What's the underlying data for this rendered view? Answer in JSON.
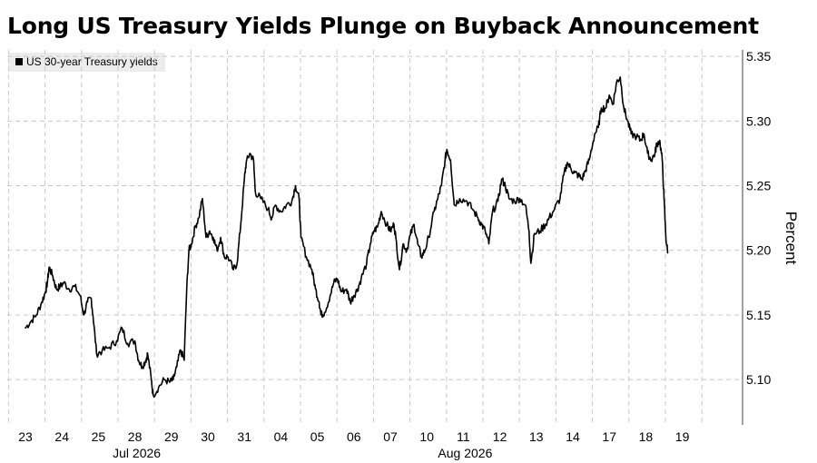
{
  "chart_data": {
    "type": "line",
    "title": "Long US Treasury Yields Plunge on Buyback Announcement",
    "legend": {
      "entries": [
        "US 30-year Treasury yields"
      ],
      "placement": "top-left"
    },
    "ylabel": "Percent",
    "ylim": [
      5.065,
      5.355
    ],
    "y_ticks": [
      "5.10",
      "5.15",
      "5.20",
      "5.25",
      "5.30",
      "5.35"
    ],
    "y_tick_values": [
      5.1,
      5.15,
      5.2,
      5.25,
      5.3,
      5.35
    ],
    "x_ticks": [
      "23",
      "24",
      "25",
      "28",
      "29",
      "30",
      "31",
      "04",
      "05",
      "06",
      "07",
      "10",
      "11",
      "12",
      "13",
      "14",
      "17",
      "18",
      "19"
    ],
    "x_month_labels": [
      {
        "label": "Jul 2026",
        "at_day": "28"
      },
      {
        "label": "Aug 2026",
        "at_day": "11"
      }
    ],
    "grid": "dashed-vertical-and-horizontal",
    "y_axis_position": "right",
    "series": [
      {
        "name": "US 30-year Treasury yields",
        "color": "#000000",
        "points": [
          [
            0.0,
            5.14
          ],
          [
            0.15,
            5.145
          ],
          [
            0.3,
            5.15
          ],
          [
            0.45,
            5.16
          ],
          [
            0.55,
            5.168
          ],
          [
            0.6,
            5.175
          ],
          [
            0.65,
            5.187
          ],
          [
            0.75,
            5.18
          ],
          [
            0.85,
            5.17
          ],
          [
            0.95,
            5.172
          ],
          [
            1.05,
            5.175
          ],
          [
            1.2,
            5.17
          ],
          [
            1.35,
            5.172
          ],
          [
            1.5,
            5.165
          ],
          [
            1.6,
            5.15
          ],
          [
            1.7,
            5.16
          ],
          [
            1.8,
            5.163
          ],
          [
            1.85,
            5.15
          ],
          [
            1.95,
            5.12
          ],
          [
            2.1,
            5.122
          ],
          [
            2.3,
            5.125
          ],
          [
            2.5,
            5.13
          ],
          [
            2.65,
            5.14
          ],
          [
            2.8,
            5.128
          ],
          [
            3.0,
            5.13
          ],
          [
            3.1,
            5.115
          ],
          [
            3.2,
            5.11
          ],
          [
            3.3,
            5.115
          ],
          [
            3.35,
            5.12
          ],
          [
            3.45,
            5.1
          ],
          [
            3.5,
            5.088
          ],
          [
            3.65,
            5.094
          ],
          [
            3.8,
            5.1
          ],
          [
            3.95,
            5.098
          ],
          [
            4.05,
            5.1
          ],
          [
            4.15,
            5.11
          ],
          [
            4.25,
            5.123
          ],
          [
            4.35,
            5.115
          ],
          [
            4.42,
            5.17
          ],
          [
            4.48,
            5.2
          ],
          [
            4.55,
            5.205
          ],
          [
            4.65,
            5.218
          ],
          [
            4.75,
            5.225
          ],
          [
            4.85,
            5.24
          ],
          [
            4.95,
            5.21
          ],
          [
            5.05,
            5.215
          ],
          [
            5.15,
            5.21
          ],
          [
            5.25,
            5.2
          ],
          [
            5.35,
            5.21
          ],
          [
            5.45,
            5.195
          ],
          [
            5.55,
            5.195
          ],
          [
            5.7,
            5.185
          ],
          [
            5.8,
            5.19
          ],
          [
            5.9,
            5.22
          ],
          [
            6.0,
            5.255
          ],
          [
            6.05,
            5.268
          ],
          [
            6.15,
            5.275
          ],
          [
            6.25,
            5.27
          ],
          [
            6.3,
            5.245
          ],
          [
            6.45,
            5.24
          ],
          [
            6.65,
            5.232
          ],
          [
            6.75,
            5.225
          ],
          [
            6.85,
            5.235
          ],
          [
            7.0,
            5.23
          ],
          [
            7.15,
            5.235
          ],
          [
            7.3,
            5.238
          ],
          [
            7.4,
            5.25
          ],
          [
            7.5,
            5.24
          ],
          [
            7.55,
            5.21
          ],
          [
            7.7,
            5.195
          ],
          [
            7.85,
            5.185
          ],
          [
            7.95,
            5.17
          ],
          [
            8.05,
            5.16
          ],
          [
            8.1,
            5.15
          ],
          [
            8.2,
            5.152
          ],
          [
            8.35,
            5.165
          ],
          [
            8.45,
            5.175
          ],
          [
            8.55,
            5.178
          ],
          [
            8.65,
            5.168
          ],
          [
            8.8,
            5.17
          ],
          [
            8.9,
            5.16
          ],
          [
            9.0,
            5.165
          ],
          [
            9.1,
            5.17
          ],
          [
            9.2,
            5.178
          ],
          [
            9.35,
            5.19
          ],
          [
            9.45,
            5.205
          ],
          [
            9.55,
            5.215
          ],
          [
            9.65,
            5.218
          ],
          [
            9.75,
            5.23
          ],
          [
            9.9,
            5.22
          ],
          [
            10.0,
            5.215
          ],
          [
            10.1,
            5.22
          ],
          [
            10.15,
            5.21
          ],
          [
            10.25,
            5.185
          ],
          [
            10.35,
            5.205
          ],
          [
            10.45,
            5.2
          ],
          [
            10.55,
            5.212
          ],
          [
            10.65,
            5.22
          ],
          [
            10.75,
            5.205
          ],
          [
            10.85,
            5.195
          ],
          [
            10.95,
            5.2
          ],
          [
            11.05,
            5.21
          ],
          [
            11.2,
            5.23
          ],
          [
            11.3,
            5.24
          ],
          [
            11.4,
            5.25
          ],
          [
            11.5,
            5.27
          ],
          [
            11.55,
            5.278
          ],
          [
            11.65,
            5.27
          ],
          [
            11.75,
            5.235
          ],
          [
            11.9,
            5.24
          ],
          [
            12.1,
            5.238
          ],
          [
            12.25,
            5.232
          ],
          [
            12.4,
            5.225
          ],
          [
            12.5,
            5.22
          ],
          [
            12.6,
            5.215
          ],
          [
            12.7,
            5.205
          ],
          [
            12.8,
            5.23
          ],
          [
            12.95,
            5.238
          ],
          [
            13.05,
            5.255
          ],
          [
            13.15,
            5.25
          ],
          [
            13.25,
            5.24
          ],
          [
            13.4,
            5.238
          ],
          [
            13.55,
            5.24
          ],
          [
            13.7,
            5.235
          ],
          [
            13.8,
            5.215
          ],
          [
            13.85,
            5.19
          ],
          [
            13.95,
            5.213
          ],
          [
            14.1,
            5.215
          ],
          [
            14.25,
            5.22
          ],
          [
            14.35,
            5.225
          ],
          [
            14.5,
            5.232
          ],
          [
            14.65,
            5.24
          ],
          [
            14.75,
            5.258
          ],
          [
            14.85,
            5.268
          ],
          [
            14.95,
            5.263
          ],
          [
            15.05,
            5.26
          ],
          [
            15.15,
            5.258
          ],
          [
            15.25,
            5.255
          ],
          [
            15.35,
            5.262
          ],
          [
            15.45,
            5.27
          ],
          [
            15.6,
            5.29
          ],
          [
            15.7,
            5.295
          ],
          [
            15.78,
            5.31
          ],
          [
            15.9,
            5.31
          ],
          [
            16.0,
            5.32
          ],
          [
            16.1,
            5.313
          ],
          [
            16.2,
            5.33
          ],
          [
            16.3,
            5.334
          ],
          [
            16.4,
            5.31
          ],
          [
            16.5,
            5.3
          ],
          [
            16.6,
            5.29
          ],
          [
            16.75,
            5.288
          ],
          [
            16.85,
            5.285
          ],
          [
            16.95,
            5.29
          ],
          [
            17.05,
            5.275
          ],
          [
            17.15,
            5.27
          ],
          [
            17.25,
            5.275
          ],
          [
            17.3,
            5.282
          ],
          [
            17.38,
            5.285
          ],
          [
            17.45,
            5.27
          ],
          [
            17.5,
            5.24
          ],
          [
            17.55,
            5.21
          ],
          [
            17.6,
            5.198
          ]
        ]
      }
    ]
  }
}
